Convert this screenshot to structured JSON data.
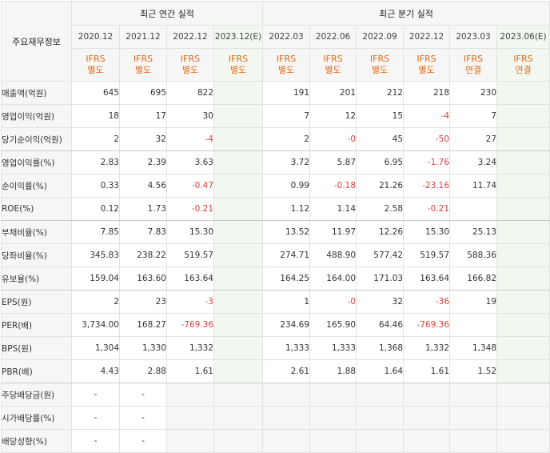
{
  "header": {
    "label": "주요재무정보",
    "annual_title": "최근 연간 실적",
    "quarter_title": "최근 분기 실적",
    "annual_periods": [
      "2020.12",
      "2021.12",
      "2022.12",
      "2023.12(E)"
    ],
    "quarter_periods": [
      "2022.03",
      "2022.06",
      "2022.09",
      "2022.12",
      "2023.03",
      "2023.06(E)"
    ],
    "annual_types": [
      "IFRS\n별도",
      "IFRS\n별도",
      "IFRS\n별도",
      "IFRS\n별도"
    ],
    "quarter_types": [
      "IFRS\n별도",
      "IFRS\n별도",
      "IFRS\n별도",
      "IFRS\n별도",
      "IFRS\n연결",
      "IFRS\n연결"
    ]
  },
  "rows": [
    {
      "label": "매출액(억원)",
      "annual": [
        "645",
        "695",
        "822",
        ""
      ],
      "quarter": [
        "191",
        "201",
        "212",
        "218",
        "230",
        ""
      ]
    },
    {
      "label": "영업이익(억원)",
      "annual": [
        "18",
        "17",
        "30",
        ""
      ],
      "quarter": [
        "7",
        "12",
        "15",
        "-4",
        "7",
        ""
      ]
    },
    {
      "label": "당기순이익(억원)",
      "annual": [
        "2",
        "32",
        "-4",
        ""
      ],
      "quarter": [
        "2",
        "-0",
        "45",
        "-50",
        "27",
        ""
      ]
    },
    {
      "label": "영업이익률(%)",
      "annual": [
        "2.83",
        "2.39",
        "3.63",
        ""
      ],
      "quarter": [
        "3.72",
        "5.87",
        "6.95",
        "-1.76",
        "3.24",
        ""
      ]
    },
    {
      "label": "순이익률(%)",
      "annual": [
        "0.33",
        "4.56",
        "-0.47",
        ""
      ],
      "quarter": [
        "0.99",
        "-0.18",
        "21.26",
        "-23.16",
        "11.74",
        ""
      ]
    },
    {
      "label": "ROE(%)",
      "annual": [
        "0.12",
        "1.73",
        "-0.21",
        ""
      ],
      "quarter": [
        "1.12",
        "1.14",
        "2.58",
        "-0.21",
        "",
        ""
      ]
    },
    {
      "label": "부채비율(%)",
      "annual": [
        "7.85",
        "7.83",
        "15.30",
        ""
      ],
      "quarter": [
        "13.52",
        "11.97",
        "12.26",
        "15.30",
        "25.13",
        ""
      ]
    },
    {
      "label": "당좌비율(%)",
      "annual": [
        "345.83",
        "238.22",
        "519.57",
        ""
      ],
      "quarter": [
        "274.71",
        "488.90",
        "577.42",
        "519.57",
        "588.36",
        ""
      ]
    },
    {
      "label": "유보율(%)",
      "annual": [
        "159.04",
        "163.60",
        "163.64",
        ""
      ],
      "quarter": [
        "164.25",
        "164.00",
        "171.03",
        "163.64",
        "166.82",
        ""
      ]
    },
    {
      "label": "EPS(원)",
      "annual": [
        "2",
        "23",
        "-3",
        ""
      ],
      "quarter": [
        "1",
        "-0",
        "32",
        "-36",
        "19",
        ""
      ]
    },
    {
      "label": "PER(배)",
      "annual": [
        "3,734.00",
        "168.27",
        "-769.36",
        ""
      ],
      "quarter": [
        "234.69",
        "165.90",
        "64.46",
        "-769.36",
        "",
        ""
      ]
    },
    {
      "label": "BPS(원)",
      "annual": [
        "1,304",
        "1,330",
        "1,332",
        ""
      ],
      "quarter": [
        "1,333",
        "1,333",
        "1,368",
        "1,332",
        "1,348",
        ""
      ]
    },
    {
      "label": "PBR(배)",
      "annual": [
        "4.43",
        "2.88",
        "1.61",
        ""
      ],
      "quarter": [
        "2.61",
        "1.88",
        "1.64",
        "1.61",
        "1.52",
        ""
      ]
    },
    {
      "label": "주당배당금(원)",
      "annual": [
        "-",
        "-",
        "",
        ""
      ],
      "quarter": [
        "",
        "",
        "",
        "",
        "",
        ""
      ]
    },
    {
      "label": "시가배당률(%)",
      "annual": [
        "-",
        "-",
        "",
        ""
      ],
      "quarter": [
        "",
        "",
        "",
        "",
        "",
        ""
      ]
    },
    {
      "label": "배당성향(%)",
      "annual": [
        "-",
        "-",
        "",
        ""
      ],
      "quarter": [
        "",
        "",
        "",
        "",
        "",
        ""
      ]
    }
  ]
}
